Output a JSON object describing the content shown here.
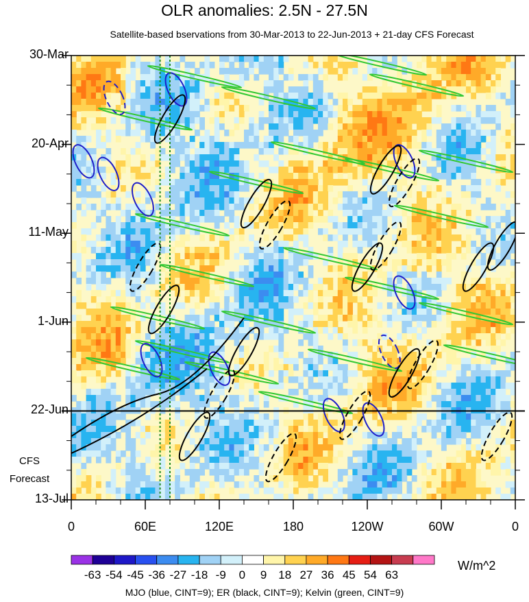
{
  "chart_data": {
    "type": "heatmap",
    "title": "OLR anomalies: 2.5N - 27.5N",
    "subtitle": "Satellite-based bservations from 30-Mar-2013 to 22-Jun-2013 + 21-day CFS Forecast",
    "y_tick_labels": [
      "30-Mar",
      "20-Apr",
      "11-May",
      "1-Jun",
      "22-Jun",
      "13-Jul"
    ],
    "y_tick_days": [
      0,
      21,
      42,
      63,
      84,
      105
    ],
    "x_tick_labels": [
      "0",
      "60E",
      "120E",
      "180",
      "120W",
      "60W",
      "0"
    ],
    "x_tick_lons": [
      0,
      60,
      120,
      180,
      240,
      300,
      360
    ],
    "xlim": [
      0,
      360
    ],
    "ylim_days": [
      0,
      105
    ],
    "forecast_start_label": "22-Jun",
    "forecast_start_day": 84,
    "forecast_label": "CFS Forecast",
    "forecast_label_lines": [
      "CFS",
      "Forecast"
    ],
    "colorbar": {
      "labels": [
        "-63",
        "-54",
        "-45",
        "-36",
        "-27",
        "-18",
        "-9",
        "0",
        "9",
        "18",
        "27",
        "36",
        "45",
        "54",
        "63"
      ],
      "colors": [
        "#9a32e6",
        "#1e0096",
        "#1e18c8",
        "#2850f0",
        "#3c8cf0",
        "#28b4f0",
        "#a0d2f5",
        "#d2f0fa",
        "#ffffff",
        "#fff5aa",
        "#ffd250",
        "#ffaa28",
        "#ff7814",
        "#e61e14",
        "#b41414",
        "#c83c50",
        "#ff78c8"
      ],
      "units": "W/m^2"
    },
    "legend": "MJO (blue, CINT=9); ER (black, CINT=9); Kelvin (green, CINT=9)",
    "reference_lines_lon": [
      72,
      80
    ]
  }
}
